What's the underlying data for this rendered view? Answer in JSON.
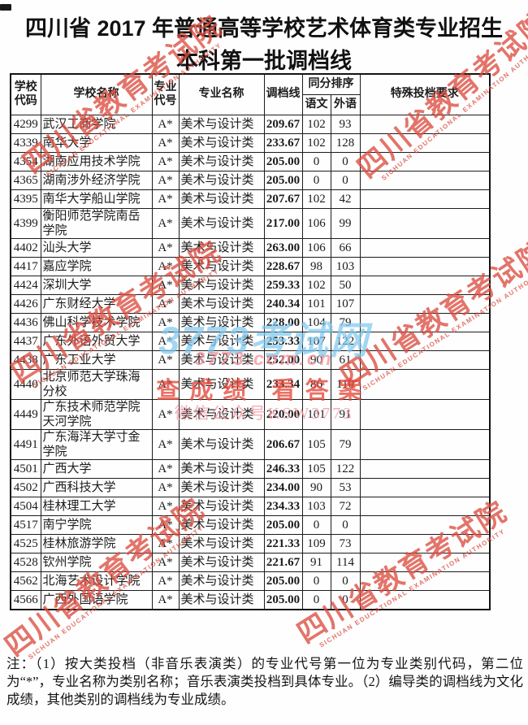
{
  "page": {
    "title_line1": "四川省 2017 年普通高等学校艺术体育类专业招生",
    "title_line2": "本科第一批调档线",
    "note": "注：（1）按大类投档（非音乐表演类）的专业代号第一位为专业类别代码，第二位为“*”，专业名称为类别名称；音乐表演类投档到具体专业。（2）编导类的调档线为文化成绩，其他类别的调档线为专业成绩。"
  },
  "table": {
    "headers": {
      "school_code": "学校代码",
      "school_name": "学校名称",
      "major_code": "专业代号",
      "major_name": "专业名称",
      "score_line": "调档线",
      "tiebreak": "同分排序",
      "chinese": "语文",
      "foreign": "外语",
      "special": "特殊投档要求"
    },
    "rows": [
      {
        "code": "4299",
        "name": "武汉工商学院",
        "major_code": "A*",
        "major_name": "美术与设计类",
        "score": "209.67",
        "chinese": "102",
        "foreign": "93",
        "special": ""
      },
      {
        "code": "4339",
        "name": "南华大学",
        "major_code": "A*",
        "major_name": "美术与设计类",
        "score": "233.67",
        "chinese": "102",
        "foreign": "128",
        "special": ""
      },
      {
        "code": "4354",
        "name": "湖南应用技术学院",
        "major_code": "A*",
        "major_name": "美术与设计类",
        "score": "205.00",
        "chinese": "0",
        "foreign": "0",
        "special": ""
      },
      {
        "code": "4365",
        "name": "湖南涉外经济学院",
        "major_code": "A*",
        "major_name": "美术与设计类",
        "score": "205.00",
        "chinese": "0",
        "foreign": "0",
        "special": ""
      },
      {
        "code": "4395",
        "name": "南华大学船山学院",
        "major_code": "A*",
        "major_name": "美术与设计类",
        "score": "207.67",
        "chinese": "102",
        "foreign": "42",
        "special": ""
      },
      {
        "code": "4399",
        "name": "衡阳师范学院南岳学院",
        "major_code": "A*",
        "major_name": "美术与设计类",
        "score": "217.00",
        "chinese": "106",
        "foreign": "99",
        "special": ""
      },
      {
        "code": "4402",
        "name": "汕头大学",
        "major_code": "A*",
        "major_name": "美术与设计类",
        "score": "263.00",
        "chinese": "106",
        "foreign": "66",
        "special": ""
      },
      {
        "code": "4417",
        "name": "嘉应学院",
        "major_code": "A*",
        "major_name": "美术与设计类",
        "score": "228.67",
        "chinese": "98",
        "foreign": "103",
        "special": ""
      },
      {
        "code": "4424",
        "name": "深圳大学",
        "major_code": "A*",
        "major_name": "美术与设计类",
        "score": "259.33",
        "chinese": "102",
        "foreign": "50",
        "special": ""
      },
      {
        "code": "4426",
        "name": "广东财经大学",
        "major_code": "A*",
        "major_name": "美术与设计类",
        "score": "240.34",
        "chinese": "101",
        "foreign": "107",
        "special": ""
      },
      {
        "code": "4436",
        "name": "佛山科学技术学院",
        "major_code": "A*",
        "major_name": "美术与设计类",
        "score": "228.00",
        "chinese": "104",
        "foreign": "79",
        "special": ""
      },
      {
        "code": "4437",
        "name": "广东外语外贸大学",
        "major_code": "A*",
        "major_name": "美术与设计类",
        "score": "253.33",
        "chinese": "107",
        "foreign": "122",
        "special": ""
      },
      {
        "code": "4438",
        "name": "广东工业大学",
        "major_code": "A*",
        "major_name": "美术与设计类",
        "score": "252.00",
        "chinese": "90",
        "foreign": "61",
        "special": ""
      },
      {
        "code": "4440",
        "name": "北京师范大学珠海分校",
        "major_code": "A*",
        "major_name": "美术与设计类",
        "score": "233.34",
        "chinese": "86",
        "foreign": "110",
        "special": ""
      },
      {
        "code": "4449",
        "name": "广东技术师范学院天河学院",
        "major_code": "A*",
        "major_name": "美术与设计类",
        "score": "220.00",
        "chinese": "101",
        "foreign": "91",
        "special": ""
      },
      {
        "code": "4491",
        "name": "广东海洋大学寸金学院",
        "major_code": "A*",
        "major_name": "美术与设计类",
        "score": "206.67",
        "chinese": "105",
        "foreign": "79",
        "special": ""
      },
      {
        "code": "4501",
        "name": "广西大学",
        "major_code": "A*",
        "major_name": "美术与设计类",
        "score": "246.33",
        "chinese": "105",
        "foreign": "122",
        "special": ""
      },
      {
        "code": "4502",
        "name": "广西科技大学",
        "major_code": "A*",
        "major_name": "美术与设计类",
        "score": "234.00",
        "chinese": "90",
        "foreign": "53",
        "special": ""
      },
      {
        "code": "4504",
        "name": "桂林理工大学",
        "major_code": "A*",
        "major_name": "美术与设计类",
        "score": "234.33",
        "chinese": "103",
        "foreign": "72",
        "special": ""
      },
      {
        "code": "4517",
        "name": "南宁学院",
        "major_code": "A*",
        "major_name": "美术与设计类",
        "score": "205.00",
        "chinese": "0",
        "foreign": "0",
        "special": ""
      },
      {
        "code": "4525",
        "name": "桂林旅游学院",
        "major_code": "A*",
        "major_name": "美术与设计类",
        "score": "221.33",
        "chinese": "109",
        "foreign": "73",
        "special": ""
      },
      {
        "code": "4528",
        "name": "钦州学院",
        "major_code": "A*",
        "major_name": "美术与设计类",
        "score": "221.67",
        "chinese": "91",
        "foreign": "114",
        "special": ""
      },
      {
        "code": "4562",
        "name": "北海艺术设计学院",
        "major_code": "A*",
        "major_name": "美术与设计类",
        "score": "205.00",
        "chinese": "0",
        "foreign": "0",
        "special": ""
      },
      {
        "code": "4566",
        "name": "广西外国语学院",
        "major_code": "A*",
        "major_name": "美术与设计类",
        "score": "205.00",
        "chinese": "0",
        "foreign": "0",
        "special": ""
      }
    ]
  },
  "watermarks": {
    "stamp_cn": "四川省教育考试院",
    "stamp_en": "SICHUAN EDUCATIONAL EXAMINATION AUTHORITY",
    "site_name": "3773考试网",
    "site_url": "3773.com.cn",
    "slogan": "查成绩 看答案",
    "wechat": "微信公众号KSW3773",
    "stamp_color": "#db4d40",
    "site_color": "#7ec7ee",
    "pink_color": "#f08c96",
    "red_color": "#e4483a"
  }
}
